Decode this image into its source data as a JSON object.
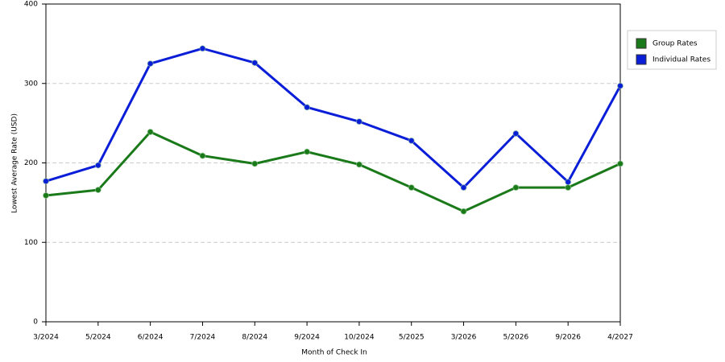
{
  "chart_data": {
    "type": "line",
    "x_label": "Month of Check In",
    "y_label": "Lowest Average Rate (USD)",
    "categories": [
      "3/2024",
      "5/2024",
      "6/2024",
      "7/2024",
      "8/2024",
      "9/2024",
      "10/2024",
      "5/2025",
      "3/2026",
      "5/2026",
      "9/2026",
      "4/2027"
    ],
    "series": [
      {
        "name": "Group Rates",
        "color": "#1a7a1a",
        "values": [
          159,
          166,
          239,
          209,
          199,
          214,
          198,
          169,
          139,
          169,
          169,
          199
        ]
      },
      {
        "name": "Individual Rates",
        "color": "#0a1ed8",
        "values": [
          177,
          197,
          325,
          344,
          326,
          270,
          252,
          228,
          169,
          237,
          176,
          297
        ]
      }
    ],
    "ylim": [
      0,
      400
    ],
    "yticks": [
      0,
      100,
      200,
      300,
      400
    ],
    "grid": true,
    "legend": "right"
  }
}
